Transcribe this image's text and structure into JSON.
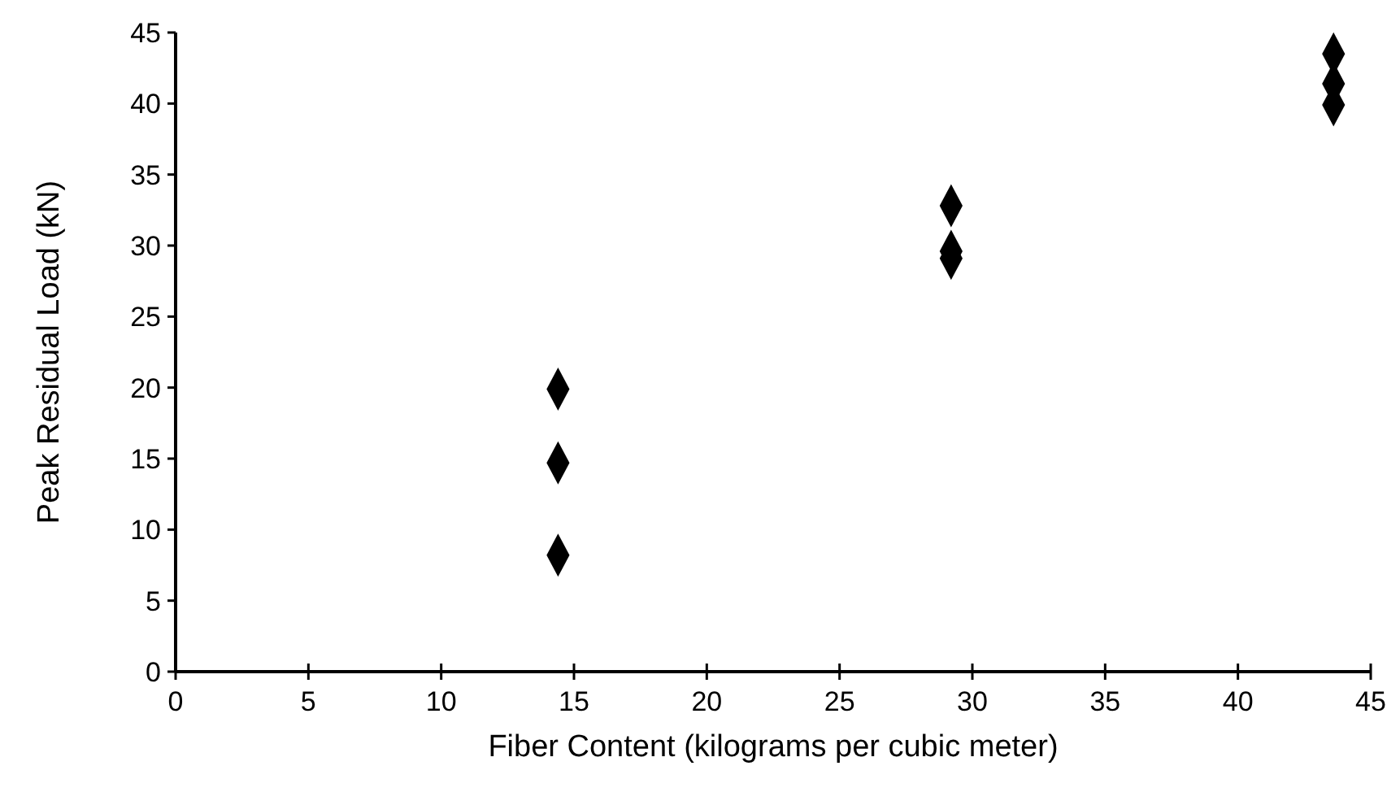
{
  "chart_data": {
    "type": "scatter",
    "xlabel": "Fiber Content (kilograms per cubic meter)",
    "ylabel": "Peak Residual Load (kN)",
    "x": [
      14.4,
      14.4,
      14.4,
      29.2,
      29.2,
      29.2,
      43.6,
      43.6,
      43.6
    ],
    "series": [
      {
        "color": "#000000",
        "values": [
          19.9,
          14.7,
          8.2,
          32.8,
          29.6,
          29.1,
          43.5,
          41.4,
          39.9
        ]
      }
    ],
    "xlim": [
      0,
      45
    ],
    "xticks": [
      0,
      5,
      10,
      15,
      20,
      25,
      30,
      35,
      40,
      45
    ],
    "ylim": [
      0,
      45
    ],
    "yticks": [
      0,
      5,
      10,
      15,
      20,
      25,
      30,
      35,
      40,
      45
    ],
    "marker": "diamond",
    "grid": false
  }
}
